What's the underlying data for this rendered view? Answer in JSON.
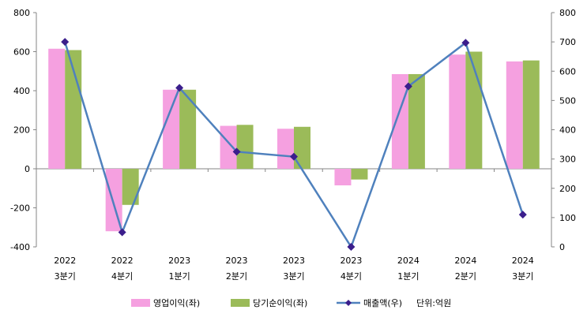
{
  "chart_data": {
    "type": "bar",
    "categories": [
      {
        "year": "2022",
        "quarter": "3분기"
      },
      {
        "year": "2022",
        "quarter": "4분기"
      },
      {
        "year": "2023",
        "quarter": "1분기"
      },
      {
        "year": "2023",
        "quarter": "2분기"
      },
      {
        "year": "2023",
        "quarter": "3분기"
      },
      {
        "year": "2023",
        "quarter": "4분기"
      },
      {
        "year": "2024",
        "quarter": "1분기"
      },
      {
        "year": "2024",
        "quarter": "2분기"
      },
      {
        "year": "2024",
        "quarter": "3분기"
      }
    ],
    "series": [
      {
        "name": "영업이익(좌)",
        "type": "bar",
        "axis": "left",
        "color": "#F5A0E0",
        "values": [
          615,
          -320,
          405,
          220,
          205,
          -85,
          485,
          585,
          550
        ]
      },
      {
        "name": "당기순이익(좌)",
        "type": "bar",
        "axis": "left",
        "color": "#9BBB59",
        "values": [
          608,
          -185,
          405,
          225,
          215,
          -55,
          485,
          600,
          555
        ]
      },
      {
        "name": "매출액(우)",
        "type": "line",
        "axis": "right",
        "color": "#4F81BD",
        "marker_color": "#3B1E8C",
        "values": [
          700,
          50,
          543,
          325,
          308,
          0,
          548,
          697,
          110
        ]
      }
    ],
    "y_left": {
      "min": -400,
      "max": 800,
      "ticks": [
        "800",
        "600",
        "400",
        "200",
        "0",
        "-200",
        "-400"
      ]
    },
    "y_right": {
      "min": 0,
      "max": 800,
      "ticks": [
        "800",
        "700",
        "600",
        "500",
        "400",
        "300",
        "200",
        "100",
        "0"
      ]
    },
    "unit_note": "단위:억원",
    "legend_position": "bottom",
    "grid": false
  }
}
